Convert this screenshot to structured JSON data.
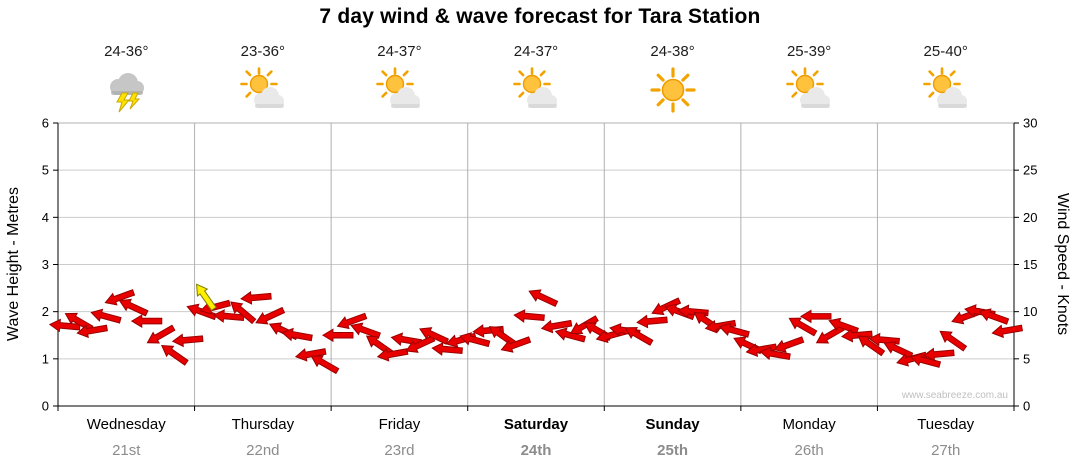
{
  "title": "7 day wind & wave forecast for Tara Station",
  "days": [
    {
      "name": "Wednesday",
      "date": "21st",
      "temp": "24-36°",
      "icon": "storm",
      "bold": false
    },
    {
      "name": "Thursday",
      "date": "22nd",
      "temp": "23-36°",
      "icon": "suncloud",
      "bold": false
    },
    {
      "name": "Friday",
      "date": "23rd",
      "temp": "24-37°",
      "icon": "suncloud",
      "bold": false
    },
    {
      "name": "Saturday",
      "date": "24th",
      "temp": "24-37°",
      "icon": "suncloud",
      "bold": true
    },
    {
      "name": "Sunday",
      "date": "25th",
      "temp": "24-38°",
      "icon": "sunny",
      "bold": true
    },
    {
      "name": "Monday",
      "date": "26th",
      "temp": "25-39°",
      "icon": "suncloud",
      "bold": false
    },
    {
      "name": "Tuesday",
      "date": "27th",
      "temp": "25-40°",
      "icon": "suncloud",
      "bold": false
    }
  ],
  "chart_data": {
    "type": "wind-arrow-timeseries",
    "title": "7 day wind & wave forecast for Tara Station",
    "ylabel_left": "Wave Height - Metres",
    "ylabel_right": "Wind Speed - Knots",
    "left_axis": {
      "ticks": [
        0,
        1,
        2,
        3,
        4,
        5,
        6
      ],
      "max": 6,
      "unit": "m"
    },
    "right_axis": {
      "ticks": [
        0,
        5,
        10,
        15,
        20,
        25,
        30
      ],
      "max": 30,
      "unit": "knots"
    },
    "x_categories": [
      "Wednesday 21st",
      "Thursday 22nd",
      "Friday 23rd",
      "Saturday 24th",
      "Sunday 25th",
      "Monday 26th",
      "Tuesday 27th"
    ],
    "grid": true,
    "arrow_color": "#e80000",
    "arrow_outline": "#990000",
    "wind_arrows_format": "[wind_speed_knots, arrow_rotation_deg] sampled left-to-right across the 7 days (180 = pointing left)",
    "wind_arrows": [
      [
        8.5,
        185
      ],
      [
        9,
        210
      ],
      [
        8,
        170
      ],
      [
        9.5,
        195
      ],
      [
        11.5,
        160
      ],
      [
        10.5,
        205
      ],
      [
        9,
        180
      ],
      [
        7.5,
        150
      ],
      [
        5.5,
        215
      ],
      [
        7,
        175
      ],
      [
        10,
        200
      ],
      [
        10.5,
        165
      ],
      [
        9.5,
        185
      ],
      [
        10,
        220
      ],
      [
        11.5,
        175
      ],
      [
        9.5,
        155
      ],
      [
        8,
        205
      ],
      [
        7.5,
        190
      ],
      [
        5.5,
        170
      ],
      [
        4.5,
        210
      ],
      [
        7.5,
        180
      ],
      [
        9,
        160
      ],
      [
        8,
        200
      ],
      [
        6.5,
        215
      ],
      [
        5.5,
        170
      ],
      [
        7,
        190
      ],
      [
        6.5,
        155
      ],
      [
        7.5,
        205
      ],
      [
        6,
        185
      ],
      [
        7,
        165
      ],
      [
        7,
        195
      ],
      [
        8,
        175
      ],
      [
        7.5,
        215
      ],
      [
        6.5,
        160
      ],
      [
        9.5,
        185
      ],
      [
        11.5,
        205
      ],
      [
        8.5,
        170
      ],
      [
        7.5,
        195
      ],
      [
        8.5,
        150
      ],
      [
        8,
        210
      ],
      [
        7.5,
        165
      ],
      [
        8,
        190
      ],
      [
        7.5,
        210
      ],
      [
        9,
        175
      ],
      [
        10.5,
        155
      ],
      [
        10,
        200
      ],
      [
        10,
        185
      ],
      [
        9,
        215
      ],
      [
        8.5,
        170
      ],
      [
        8,
        195
      ],
      [
        6.5,
        205
      ],
      [
        6,
        170
      ],
      [
        5.5,
        190
      ],
      [
        6.5,
        160
      ],
      [
        8.5,
        210
      ],
      [
        9.5,
        180
      ],
      [
        7.5,
        150
      ],
      [
        8.5,
        200
      ],
      [
        7.5,
        175
      ],
      [
        6.5,
        215
      ],
      [
        7,
        185
      ],
      [
        6,
        205
      ],
      [
        5,
        165
      ],
      [
        4.8,
        195
      ],
      [
        5.5,
        175
      ],
      [
        7,
        215
      ],
      [
        9.5,
        160
      ],
      [
        10,
        190
      ],
      [
        9.5,
        200
      ],
      [
        8,
        170
      ]
    ],
    "highlight_arrow": {
      "knots": 11.6,
      "dir": 235,
      "x_frac": 0.154,
      "color": "#ffee00",
      "outline": "#7a7a00"
    },
    "watermark": "www.seabreeze.com.au"
  }
}
